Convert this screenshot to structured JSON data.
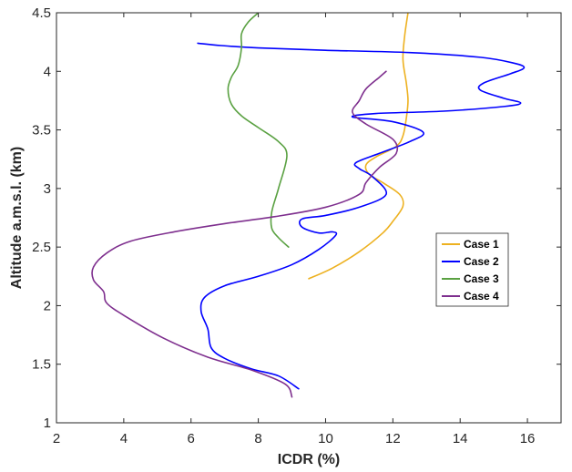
{
  "chart_data": {
    "type": "line",
    "title": "",
    "xlabel": "ICDR (%)",
    "ylabel": "Altitude a.m.s.l. (km)",
    "xlim": [
      2,
      17
    ],
    "ylim": [
      1,
      4.5
    ],
    "xticks": [
      2,
      4,
      6,
      8,
      10,
      12,
      14,
      16
    ],
    "yticks": [
      1,
      1.5,
      2,
      2.5,
      3,
      3.5,
      4,
      4.5
    ],
    "grid": false,
    "legend_position": "right",
    "series": [
      {
        "name": "Case 1",
        "color": "#EDB120",
        "points": [
          [
            9.5,
            2.23
          ],
          [
            10.2,
            2.32
          ],
          [
            11.0,
            2.46
          ],
          [
            11.7,
            2.62
          ],
          [
            12.0,
            2.72
          ],
          [
            12.3,
            2.85
          ],
          [
            12.2,
            2.95
          ],
          [
            11.7,
            3.05
          ],
          [
            11.3,
            3.12
          ],
          [
            11.2,
            3.2
          ],
          [
            11.5,
            3.27
          ],
          [
            12.1,
            3.36
          ],
          [
            12.3,
            3.45
          ],
          [
            12.4,
            3.6
          ],
          [
            12.45,
            3.75
          ],
          [
            12.4,
            3.9
          ],
          [
            12.3,
            4.1
          ],
          [
            12.35,
            4.3
          ],
          [
            12.45,
            4.5
          ]
        ]
      },
      {
        "name": "Case 2",
        "color": "#0000FF",
        "points": [
          [
            9.2,
            1.29
          ],
          [
            8.6,
            1.4
          ],
          [
            7.8,
            1.46
          ],
          [
            7.0,
            1.55
          ],
          [
            6.6,
            1.64
          ],
          [
            6.5,
            1.8
          ],
          [
            6.3,
            1.95
          ],
          [
            6.4,
            2.07
          ],
          [
            7.0,
            2.17
          ],
          [
            8.0,
            2.25
          ],
          [
            9.0,
            2.35
          ],
          [
            9.8,
            2.48
          ],
          [
            10.3,
            2.6
          ],
          [
            10.2,
            2.63
          ],
          [
            9.8,
            2.62
          ],
          [
            9.3,
            2.67
          ],
          [
            9.3,
            2.74
          ],
          [
            10.0,
            2.77
          ],
          [
            11.0,
            2.84
          ],
          [
            11.8,
            2.95
          ],
          [
            11.4,
            3.1
          ],
          [
            11.0,
            3.17
          ],
          [
            10.9,
            3.22
          ],
          [
            11.6,
            3.3
          ],
          [
            12.5,
            3.4
          ],
          [
            12.9,
            3.48
          ],
          [
            12.0,
            3.57
          ],
          [
            10.8,
            3.61
          ],
          [
            11.5,
            3.64
          ],
          [
            13.5,
            3.66
          ],
          [
            15.3,
            3.7
          ],
          [
            15.8,
            3.73
          ],
          [
            15.3,
            3.77
          ],
          [
            14.6,
            3.84
          ],
          [
            14.7,
            3.9
          ],
          [
            15.5,
            3.98
          ],
          [
            15.9,
            4.03
          ],
          [
            15.6,
            4.07
          ],
          [
            14.6,
            4.12
          ],
          [
            12.5,
            4.16
          ],
          [
            10.0,
            4.18
          ],
          [
            8.0,
            4.2
          ],
          [
            6.9,
            4.22
          ],
          [
            6.2,
            4.24
          ]
        ]
      },
      {
        "name": "Case 3",
        "color": "#5AA142",
        "points": [
          [
            8.9,
            2.5
          ],
          [
            8.6,
            2.58
          ],
          [
            8.4,
            2.66
          ],
          [
            8.4,
            2.8
          ],
          [
            8.6,
            3.0
          ],
          [
            8.85,
            3.28
          ],
          [
            8.6,
            3.4
          ],
          [
            8.0,
            3.52
          ],
          [
            7.5,
            3.62
          ],
          [
            7.2,
            3.72
          ],
          [
            7.1,
            3.85
          ],
          [
            7.2,
            3.95
          ],
          [
            7.4,
            4.05
          ],
          [
            7.5,
            4.2
          ],
          [
            7.5,
            4.32
          ],
          [
            7.7,
            4.42
          ],
          [
            8.0,
            4.5
          ]
        ]
      },
      {
        "name": "Case 4",
        "color": "#7E2F8E",
        "points": [
          [
            9.0,
            1.22
          ],
          [
            8.8,
            1.33
          ],
          [
            7.8,
            1.45
          ],
          [
            6.5,
            1.56
          ],
          [
            5.2,
            1.72
          ],
          [
            4.1,
            1.9
          ],
          [
            3.5,
            2.02
          ],
          [
            3.4,
            2.12
          ],
          [
            3.1,
            2.22
          ],
          [
            3.1,
            2.33
          ],
          [
            3.5,
            2.45
          ],
          [
            4.2,
            2.55
          ],
          [
            5.5,
            2.63
          ],
          [
            7.0,
            2.7
          ],
          [
            8.5,
            2.76
          ],
          [
            10.0,
            2.84
          ],
          [
            11.0,
            2.95
          ],
          [
            11.2,
            3.05
          ],
          [
            11.6,
            3.18
          ],
          [
            12.1,
            3.3
          ],
          [
            12.0,
            3.42
          ],
          [
            11.2,
            3.55
          ],
          [
            10.8,
            3.65
          ],
          [
            11.0,
            3.75
          ],
          [
            11.2,
            3.85
          ],
          [
            11.6,
            3.95
          ],
          [
            11.8,
            4.0
          ]
        ]
      }
    ]
  }
}
